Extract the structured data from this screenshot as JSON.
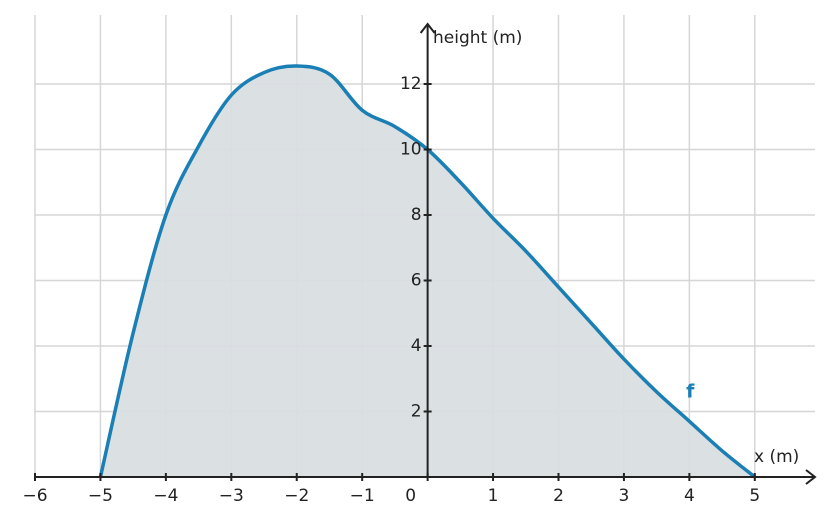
{
  "chart_data": {
    "type": "area",
    "x_label": "x (m)",
    "y_label": "height (m)",
    "x": [
      -5,
      -4.5,
      -4,
      -3.5,
      -3,
      -2.5,
      -2,
      -1.5,
      -1,
      -0.5,
      0,
      0.5,
      1,
      1.5,
      2,
      2.5,
      3,
      3.5,
      4,
      4.5,
      5
    ],
    "series": [
      {
        "name": "f",
        "color": "#1a7fb5",
        "fill": "#d9dee1",
        "values": [
          0,
          4.4,
          8,
          10.1,
          11.66,
          12.35,
          12.55,
          12.3,
          11.2,
          10.7,
          10,
          9,
          7.9,
          6.9,
          5.8,
          4.7,
          3.6,
          2.6,
          1.7,
          0.8,
          0
        ]
      }
    ],
    "xlim": [
      -6,
      5.92
    ],
    "ylim": [
      0,
      14
    ],
    "xticks": [
      {
        "value": -6,
        "label": "−6"
      },
      {
        "value": -5,
        "label": "−5"
      },
      {
        "value": -4,
        "label": "−4"
      },
      {
        "value": -3,
        "label": "−3"
      },
      {
        "value": -2,
        "label": "−2"
      },
      {
        "value": -1,
        "label": "−1"
      },
      0,
      1,
      2,
      3,
      4,
      5
    ],
    "yticks": [
      2,
      4,
      6,
      8,
      10,
      12
    ],
    "grid": true
  }
}
